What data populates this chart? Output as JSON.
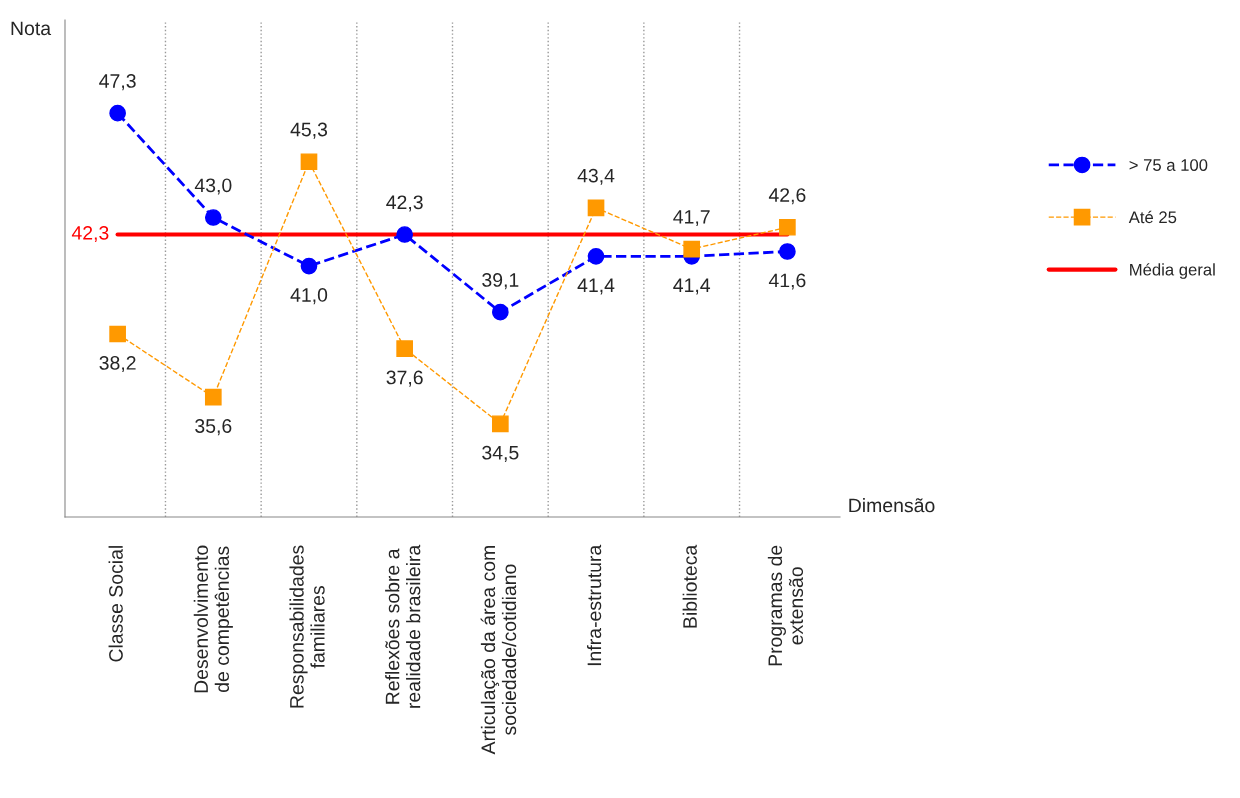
{
  "chart_data": {
    "type": "line",
    "ylabel": "Nota",
    "xlabel": "Dimensão",
    "categories": [
      "Classe Social",
      "Desenvolvimento\nde competências",
      "Responsabilidades\nfamiliares",
      "Reflexões sobre a\nrealidade brasileira",
      "Articulação da área com\nsociedade/cotidiano",
      "Infra-estrutura",
      "Biblioteca",
      "Programas de\nextensão"
    ],
    "series": [
      {
        "name": "> 75 a 100",
        "color": "#0000ff",
        "marker": "circle",
        "line_style": "dashed",
        "values": [
          47.3,
          43.0,
          41.0,
          42.3,
          39.1,
          41.4,
          41.4,
          41.6
        ],
        "value_labels": [
          "47,3",
          "43,0",
          "41,0",
          "42,3",
          "39,1",
          "41,4",
          "41,4",
          "41,6"
        ]
      },
      {
        "name": "Até 25",
        "color": "#ff9900",
        "marker": "square",
        "line_style": "dashed",
        "values": [
          38.2,
          35.6,
          45.3,
          37.6,
          34.5,
          43.4,
          41.7,
          42.6
        ],
        "value_labels": [
          "38,2",
          "35,6",
          "45,3",
          "37,6",
          "34,5",
          "43,4",
          "41,7",
          "42,6"
        ]
      },
      {
        "name": "Média geral",
        "color": "#ff0000",
        "marker": "none",
        "line_style": "solid",
        "values": [
          42.3,
          42.3,
          42.3,
          42.3,
          42.3,
          42.3,
          42.3,
          42.3
        ],
        "value_labels": [
          "42,3",
          null,
          null,
          null,
          null,
          null,
          null,
          null
        ]
      }
    ],
    "grid": "x",
    "legend": "right",
    "tick_labels": "x"
  }
}
